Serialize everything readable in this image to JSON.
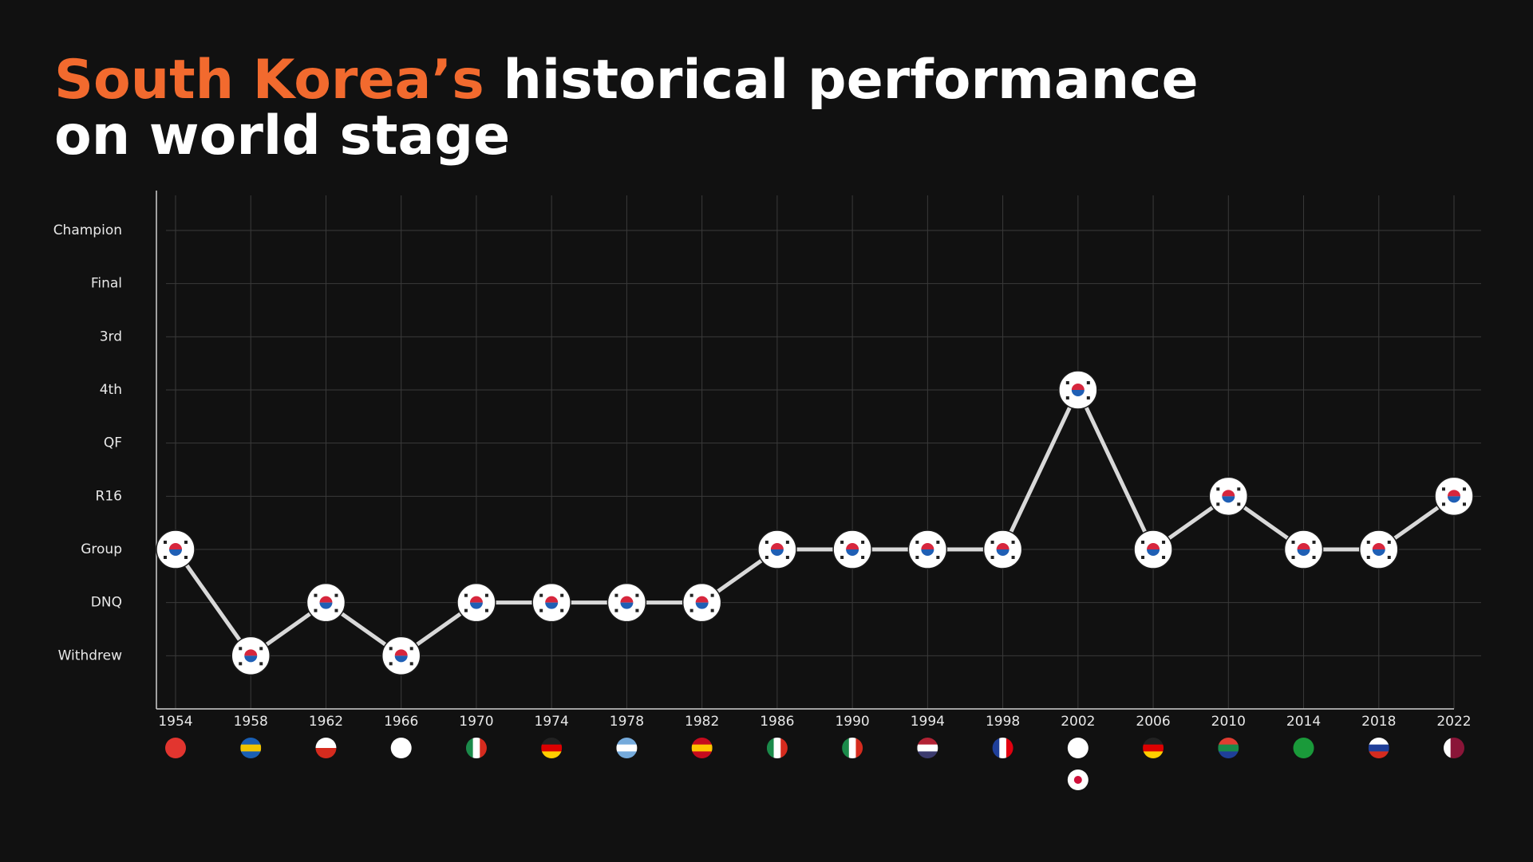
{
  "chart_data": {
    "type": "line",
    "title": [
      "South Korea’s",
      "historical performance",
      "on world stage"
    ],
    "categories": [
      "1954",
      "1958",
      "1962",
      "1966",
      "1970",
      "1974",
      "1978",
      "1982",
      "1986",
      "1990",
      "1994",
      "1998",
      "2002",
      "2006",
      "2010",
      "2014",
      "2018",
      "2022"
    ],
    "values": [
      2,
      0,
      1,
      0,
      1,
      1,
      1,
      1,
      2,
      2,
      2,
      2,
      5,
      2,
      3,
      2,
      2,
      3
    ],
    "color": "#d9d9d9",
    "ylim": [
      -1,
      8.75
    ],
    "yticks": [
      {
        "value": 0,
        "label": "Withdrew"
      },
      {
        "value": 1,
        "label": "DNQ"
      },
      {
        "value": 2,
        "label": "Group"
      },
      {
        "value": 3,
        "label": "R16"
      },
      {
        "value": 4,
        "label": "QF"
      },
      {
        "value": 5,
        "label": "4th"
      },
      {
        "value": 6,
        "label": "3rd"
      },
      {
        "value": 7,
        "label": "Final"
      },
      {
        "value": 8,
        "label": "Champion"
      }
    ],
    "grid": true
  }
}
